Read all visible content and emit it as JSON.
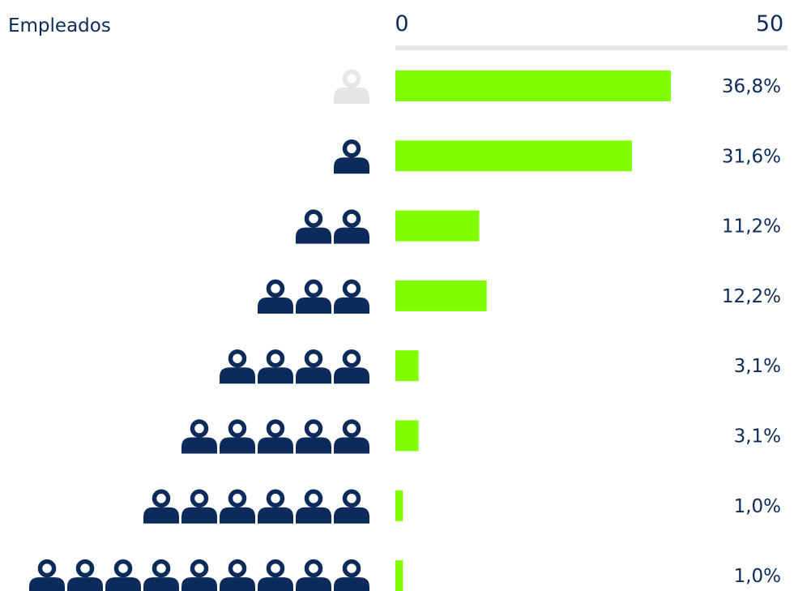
{
  "chart_data": {
    "type": "bar",
    "title": "Empleados",
    "xlim": [
      0,
      50
    ],
    "tick_labels": [
      "0",
      "50"
    ],
    "categories": [
      "0",
      "1",
      "2",
      "3",
      "4",
      "5",
      "6",
      "9"
    ],
    "values": [
      36.8,
      31.6,
      11.2,
      12.2,
      3.1,
      3.1,
      1.0,
      1.0
    ],
    "value_labels": [
      "36,8%",
      "31,6%",
      "11,2%",
      "12,2%",
      "3,1%",
      "3,1%",
      "1,0%",
      "1,0%"
    ],
    "icon": "person-icon",
    "colors": {
      "bar": "#7fff00",
      "icon": "#0d2b5a",
      "icon_empty": "#e6e6e6",
      "axis": "#e6e6e6",
      "text": "#0d2b5a"
    }
  }
}
